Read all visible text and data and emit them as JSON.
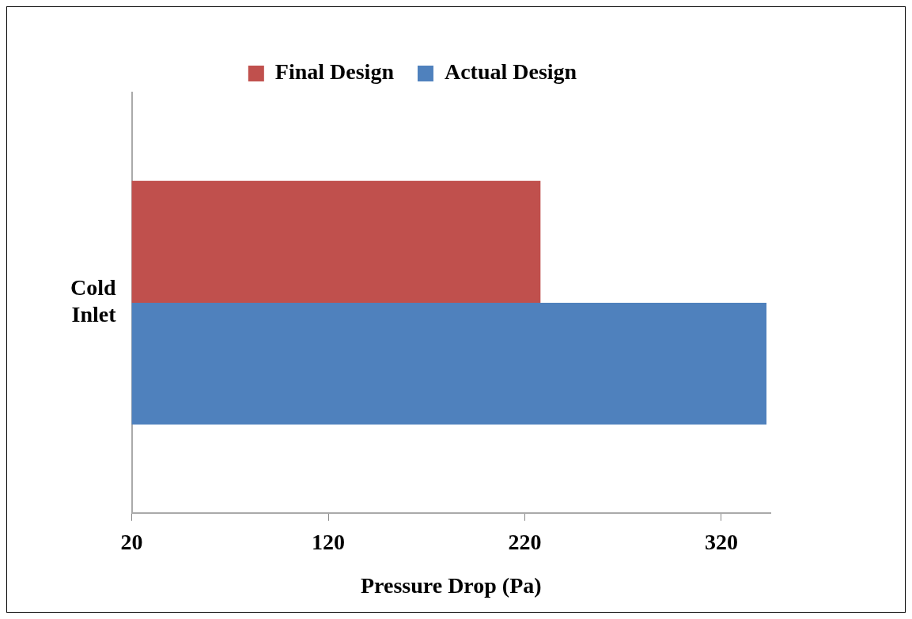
{
  "chart_data": {
    "type": "bar",
    "orientation": "horizontal",
    "xlabel": "Pressure Drop (Pa)",
    "categories": [
      "Cold Inlet"
    ],
    "series": [
      {
        "name": "Final Design",
        "color": "#c0504d",
        "values": [
          228
        ]
      },
      {
        "name": "Actual Design",
        "color": "#4f81bd",
        "values": [
          343
        ]
      }
    ],
    "xlim": [
      20,
      345
    ],
    "xticks": [
      20,
      120,
      220,
      320
    ],
    "grid": false,
    "legend": "top"
  }
}
